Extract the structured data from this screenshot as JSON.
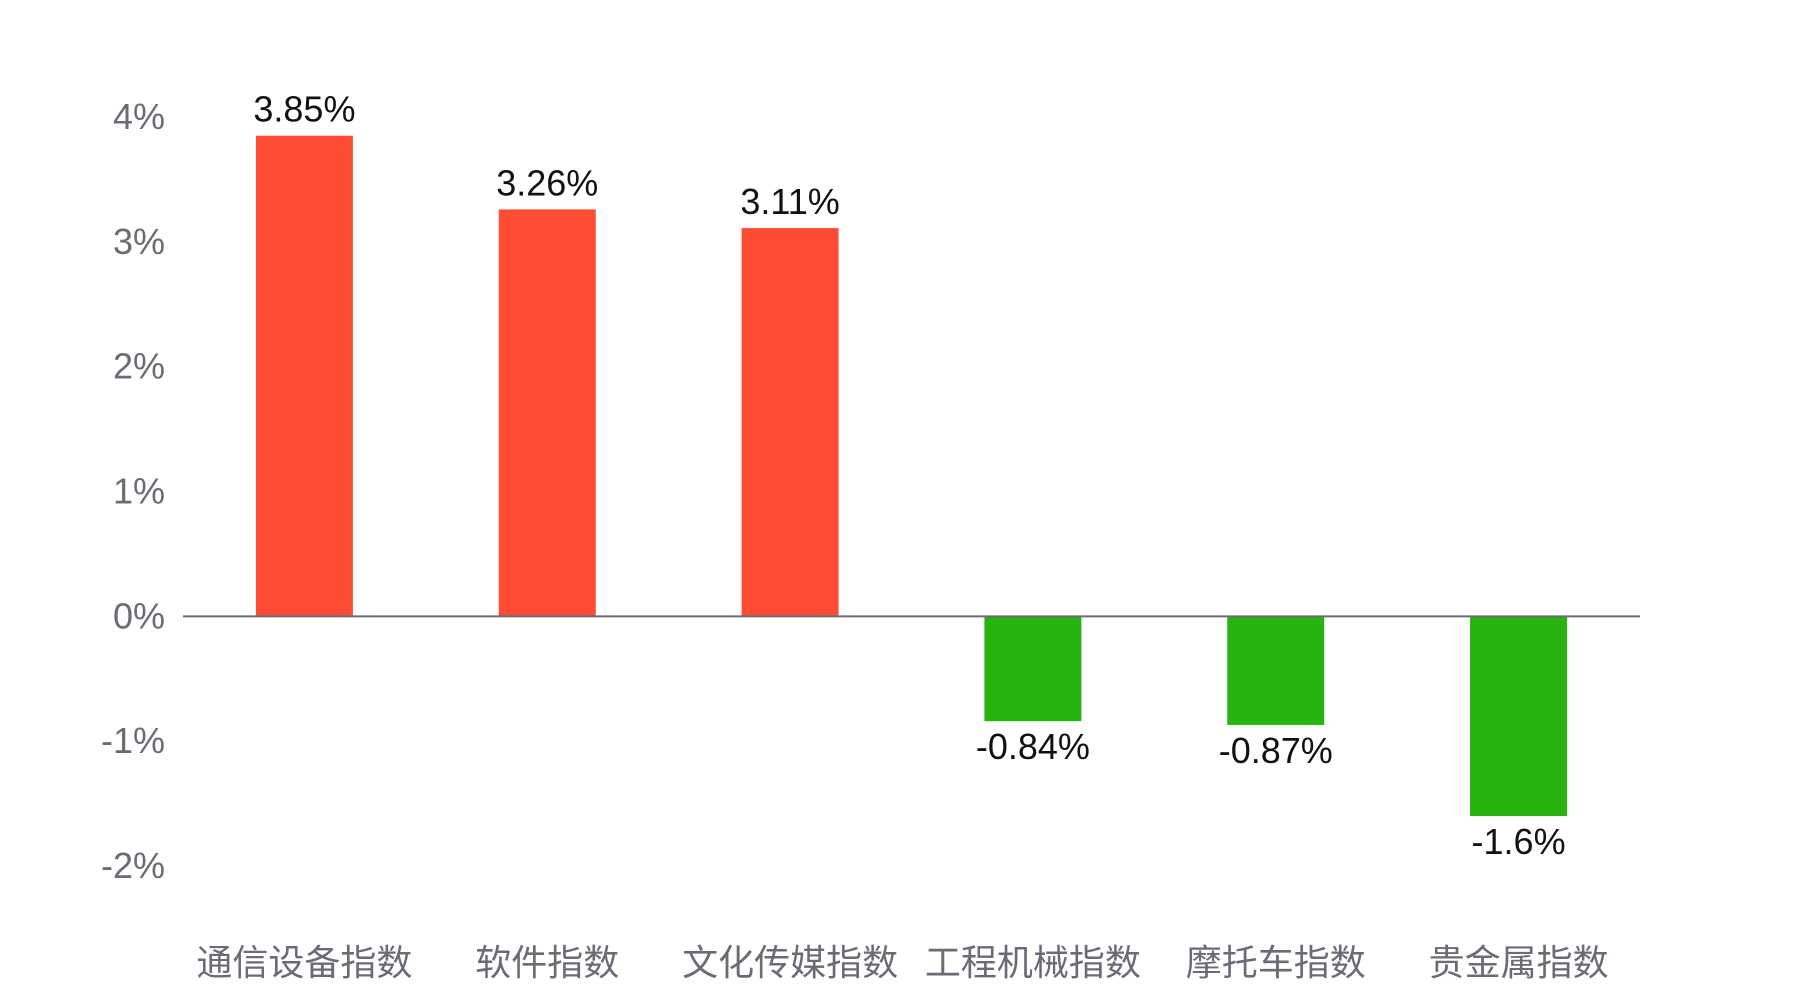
{
  "chart_data": {
    "type": "bar",
    "title": "",
    "xlabel": "",
    "ylabel": "",
    "categories": [
      "通信设备指数",
      "软件指数",
      "文化传媒指数",
      "工程机械指数",
      "摩托车指数",
      "贵金属指数"
    ],
    "values": [
      3.85,
      3.26,
      3.11,
      -0.84,
      -0.87,
      -1.6
    ],
    "data_labels": [
      "3.85%",
      "3.26%",
      "3.11%",
      "-0.84%",
      "-0.87%",
      "-1.6%"
    ],
    "ylim": [
      -2,
      4
    ],
    "y_ticks": [
      4,
      3,
      2,
      1,
      0,
      -1,
      -2
    ],
    "y_tick_labels": [
      "4%",
      "3%",
      "2%",
      "1%",
      "0%",
      "-1%",
      "-2%"
    ],
    "grid": false,
    "legend": "none",
    "colors": {
      "positive": "#ff4c33",
      "negative": "#28b40f",
      "axis": "#6b6b76",
      "tick_text": "#6b6b76",
      "data_text": "#111111"
    }
  }
}
